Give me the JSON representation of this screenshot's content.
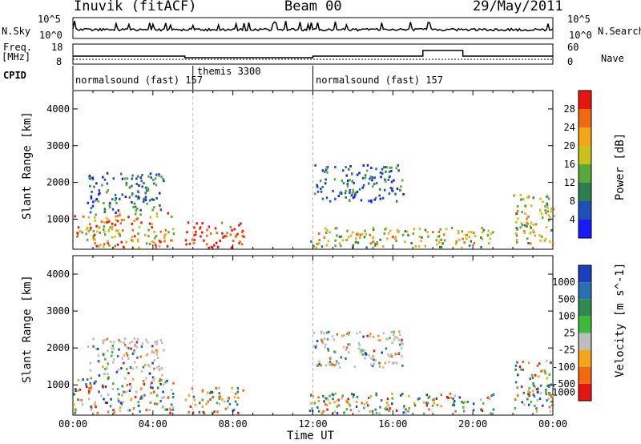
{
  "header": {
    "station": "Inuvik (fitACF)",
    "beam": "Beam 00",
    "date": "29/May/2011"
  },
  "panels": {
    "noise": {
      "left_label": "N.Sky",
      "left_ticks": [
        "10^5",
        "10^0"
      ],
      "right_label": "N.Search",
      "right_ticks": [
        "10^5",
        "10^0"
      ]
    },
    "freq": {
      "left_label_1": "Freq.",
      "left_label_2": "[MHz]",
      "left_ticks": [
        "18",
        "8"
      ],
      "right_label": "Nave",
      "right_ticks": [
        "60",
        "0"
      ]
    },
    "cpid": {
      "label": "CPID",
      "segments": [
        {
          "text": "normalsound (fast) 157",
          "start_hour": 0
        },
        {
          "text": "themis 3300",
          "start_hour": 6
        },
        {
          "text": "normalsound (fast) 157",
          "start_hour": 12
        }
      ]
    }
  },
  "chart_data": [
    {
      "type": "heatmap",
      "title": "Power",
      "ylabel": "Slant Range [km]",
      "xlabel": "Time UT",
      "x_ticks": [
        "00:00",
        "04:00",
        "08:00",
        "12:00",
        "16:00",
        "20:00",
        "00:00"
      ],
      "xlim_hours": [
        0,
        24
      ],
      "y_ticks": [
        1000,
        2000,
        3000,
        4000
      ],
      "ylim": [
        180,
        4500
      ],
      "colorbar": {
        "label": "Power [dB]",
        "ticks": [
          "4",
          "8",
          "12",
          "16",
          "20",
          "24",
          "28"
        ],
        "colors": [
          "#1a1aff",
          "#1f4fb8",
          "#2e7d4f",
          "#5aa83c",
          "#c9c21c",
          "#f4a51a",
          "#f06a12",
          "#e8140e"
        ]
      },
      "echo_regions": [
        {
          "hours": [
            0,
            5
          ],
          "range_km": [
            250,
            1200
          ],
          "level": "strong"
        },
        {
          "hours": [
            0.7,
            4.5
          ],
          "range_km": [
            1200,
            2300
          ],
          "level": "weak"
        },
        {
          "hours": [
            5.6,
            8.5
          ],
          "range_km": [
            250,
            950
          ],
          "level": "very-strong"
        },
        {
          "hours": [
            11.8,
            21
          ],
          "range_km": [
            250,
            800
          ],
          "level": "moderate"
        },
        {
          "hours": [
            12,
            16.5
          ],
          "range_km": [
            1500,
            2500
          ],
          "level": "weak"
        },
        {
          "hours": [
            22,
            24
          ],
          "range_km": [
            300,
            1700
          ],
          "level": "moderate"
        }
      ]
    },
    {
      "type": "heatmap",
      "title": "Velocity",
      "ylabel": "Slant Range [km]",
      "xlabel": "Time UT",
      "x_ticks": [
        "00:00",
        "04:00",
        "08:00",
        "12:00",
        "16:00",
        "20:00",
        "00:00"
      ],
      "xlim_hours": [
        0,
        24
      ],
      "y_ticks": [
        1000,
        2000,
        3000,
        4000
      ],
      "ylim": [
        180,
        4500
      ],
      "colorbar": {
        "label": "Velocity [m s^-1]",
        "ticks": [
          "1000",
          "500",
          "100",
          "25",
          "-25",
          "-100",
          "-500",
          "-1000"
        ],
        "colors": [
          "#1b3fbf",
          "#2b6fb0",
          "#2e8a50",
          "#3fb93a",
          "#bdbdbd",
          "#f4a51a",
          "#f06a12",
          "#e81414"
        ]
      }
    }
  ]
}
